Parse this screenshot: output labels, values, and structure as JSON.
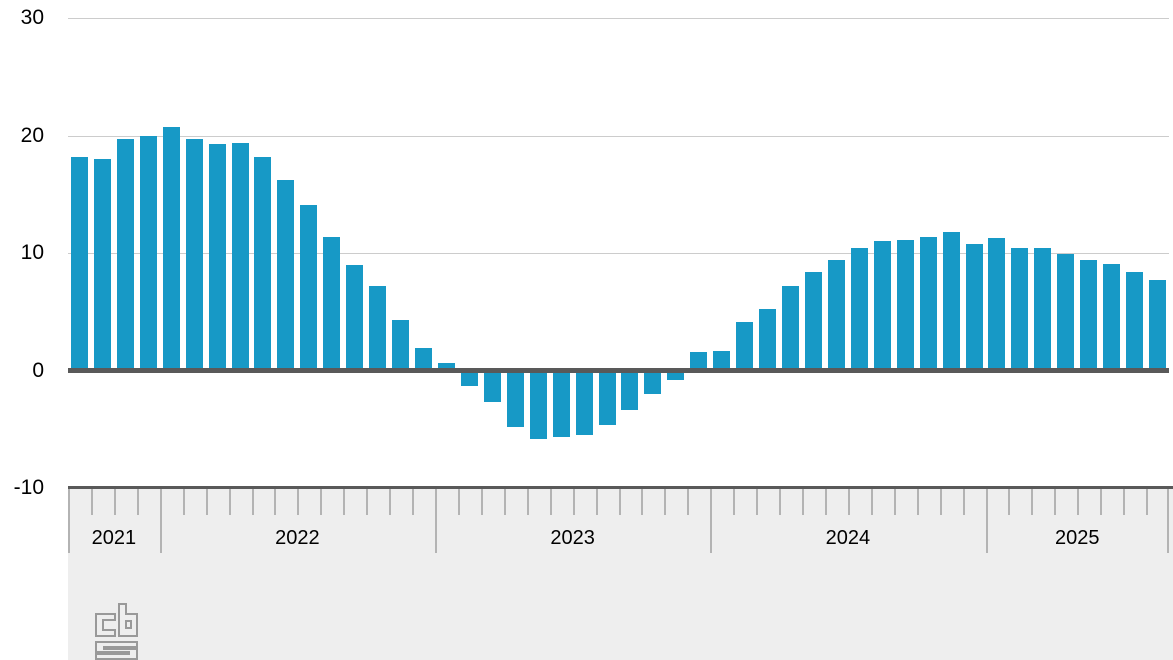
{
  "chart_data": {
    "type": "bar",
    "title": "",
    "legend": "none",
    "grid": "horizontal",
    "ylim": [
      -10,
      30
    ],
    "yticks": [
      30,
      20,
      10,
      0,
      -10
    ],
    "xtick_years": [
      "2021",
      "2022",
      "2023",
      "2024",
      "2025"
    ],
    "years_axis": [
      {
        "label": "2021",
        "n_months": 4
      },
      {
        "label": "2022",
        "n_months": 12
      },
      {
        "label": "2023",
        "n_months": 12
      },
      {
        "label": "2024",
        "n_months": 12
      },
      {
        "label": "2025",
        "n_months": 8
      }
    ],
    "categories": [
      "2021-09",
      "2021-10",
      "2021-11",
      "2021-12",
      "2022-01",
      "2022-02",
      "2022-03",
      "2022-04",
      "2022-05",
      "2022-06",
      "2022-07",
      "2022-08",
      "2022-09",
      "2022-10",
      "2022-11",
      "2022-12",
      "2023-01",
      "2023-02",
      "2023-03",
      "2023-04",
      "2023-05",
      "2023-06",
      "2023-07",
      "2023-08",
      "2023-09",
      "2023-10",
      "2023-11",
      "2023-12",
      "2024-01",
      "2024-02",
      "2024-03",
      "2024-04",
      "2024-05",
      "2024-06",
      "2024-07",
      "2024-08",
      "2024-09",
      "2024-10",
      "2024-11",
      "2024-12",
      "2025-01",
      "2025-02",
      "2025-03",
      "2025-04",
      "2025-05",
      "2025-06",
      "2025-07",
      "2025-08"
    ],
    "values": [
      18.2,
      18.0,
      19.7,
      20.0,
      20.7,
      19.7,
      19.3,
      19.4,
      18.2,
      16.2,
      14.1,
      11.4,
      9.0,
      7.2,
      4.3,
      1.9,
      0.6,
      -1.3,
      -2.7,
      -4.8,
      -5.8,
      -5.7,
      -5.5,
      -4.6,
      -3.4,
      -2.0,
      -0.8,
      1.6,
      1.7,
      4.1,
      5.2,
      7.2,
      8.4,
      9.4,
      10.4,
      11.0,
      11.1,
      11.4,
      11.8,
      10.8,
      11.3,
      10.4,
      10.4,
      9.9,
      9.4,
      9.1,
      8.4,
      7.7
    ]
  },
  "colors": {
    "bar": "#1799c6",
    "zero_line": "#595959",
    "gridline": "#cccccc",
    "axis_band_bg": "#eeeeee",
    "axis_band_border": "#595959",
    "tick": "#b3b3b3",
    "label_text": "#000000",
    "logo": "#999999"
  },
  "logo": {
    "name": "cbs-logo",
    "letters": "cbs"
  }
}
